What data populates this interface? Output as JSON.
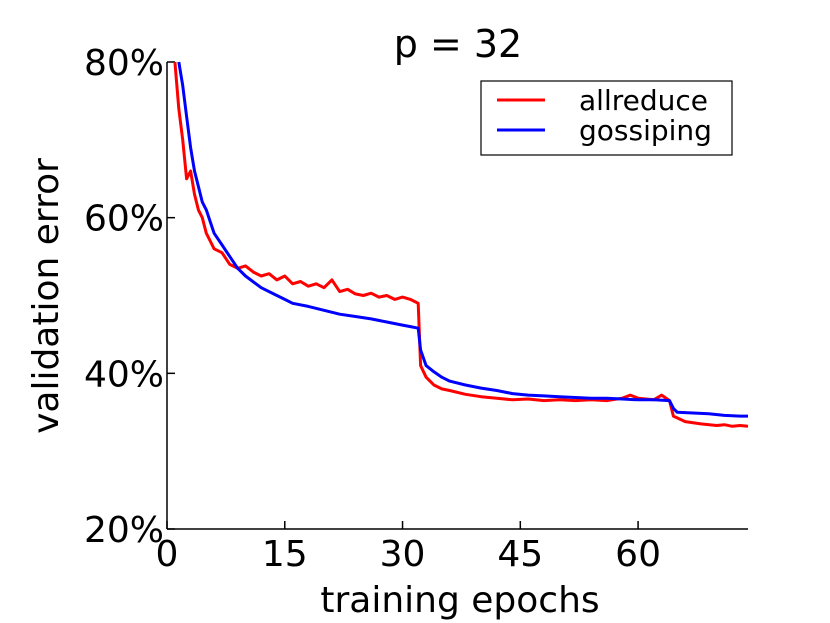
{
  "chart_data": {
    "type": "line",
    "title": "p = 32",
    "xlabel": "training epochs",
    "ylabel": "validation error",
    "xlim": [
      0,
      74
    ],
    "ylim": [
      20,
      80
    ],
    "xticks": [
      0,
      15,
      30,
      45,
      60
    ],
    "xtick_labels": [
      "0",
      "15",
      "30",
      "45",
      "60"
    ],
    "yticks": [
      20,
      40,
      60,
      80
    ],
    "ytick_labels": [
      "20%",
      "40%",
      "60%",
      "80%"
    ],
    "legend_position": "top-right",
    "series": [
      {
        "name": "allreduce",
        "color": "#ff0000",
        "points": [
          [
            1,
            80
          ],
          [
            1.5,
            74
          ],
          [
            2,
            70
          ],
          [
            2.5,
            65
          ],
          [
            3,
            66
          ],
          [
            3.5,
            63
          ],
          [
            4,
            61
          ],
          [
            4.5,
            60
          ],
          [
            5,
            58
          ],
          [
            5.5,
            57
          ],
          [
            6,
            56
          ],
          [
            7,
            55.5
          ],
          [
            8,
            54
          ],
          [
            9,
            53.5
          ],
          [
            10,
            53.8
          ],
          [
            11,
            53
          ],
          [
            12,
            52.5
          ],
          [
            13,
            52.8
          ],
          [
            14,
            52
          ],
          [
            15,
            52.5
          ],
          [
            16,
            51.5
          ],
          [
            17,
            51.8
          ],
          [
            18,
            51.2
          ],
          [
            19,
            51.5
          ],
          [
            20,
            51
          ],
          [
            21,
            52
          ],
          [
            22,
            50.5
          ],
          [
            23,
            50.8
          ],
          [
            24,
            50.2
          ],
          [
            25,
            50
          ],
          [
            26,
            50.3
          ],
          [
            27,
            49.8
          ],
          [
            28,
            50
          ],
          [
            29,
            49.5
          ],
          [
            30,
            49.8
          ],
          [
            31,
            49.5
          ],
          [
            32,
            49
          ],
          [
            32.3,
            41
          ],
          [
            33,
            39.5
          ],
          [
            34,
            38.5
          ],
          [
            35,
            38
          ],
          [
            36,
            37.8
          ],
          [
            38,
            37.3
          ],
          [
            40,
            37
          ],
          [
            42,
            36.8
          ],
          [
            44,
            36.6
          ],
          [
            46,
            36.7
          ],
          [
            48,
            36.5
          ],
          [
            50,
            36.6
          ],
          [
            52,
            36.5
          ],
          [
            54,
            36.6
          ],
          [
            56,
            36.5
          ],
          [
            58,
            36.8
          ],
          [
            59,
            37.2
          ],
          [
            60,
            36.8
          ],
          [
            62,
            36.6
          ],
          [
            63,
            37.2
          ],
          [
            64,
            36.5
          ],
          [
            64.5,
            34.5
          ],
          [
            66,
            33.8
          ],
          [
            68,
            33.5
          ],
          [
            70,
            33.3
          ],
          [
            71,
            33.4
          ],
          [
            72,
            33.2
          ],
          [
            73,
            33.3
          ],
          [
            74,
            33.2
          ]
        ]
      },
      {
        "name": "gossiping",
        "color": "#0000ff",
        "points": [
          [
            1.5,
            80
          ],
          [
            2,
            77
          ],
          [
            2.5,
            73
          ],
          [
            3,
            69
          ],
          [
            3.5,
            66
          ],
          [
            4,
            64
          ],
          [
            4.5,
            62
          ],
          [
            5,
            61
          ],
          [
            5.5,
            59.5
          ],
          [
            6,
            58
          ],
          [
            7,
            56.5
          ],
          [
            8,
            55
          ],
          [
            9,
            53.5
          ],
          [
            10,
            52.5
          ],
          [
            12,
            51
          ],
          [
            14,
            50
          ],
          [
            15,
            49.5
          ],
          [
            16,
            49
          ],
          [
            18,
            48.6
          ],
          [
            20,
            48.1
          ],
          [
            22,
            47.6
          ],
          [
            24,
            47.3
          ],
          [
            26,
            47
          ],
          [
            28,
            46.6
          ],
          [
            30,
            46.2
          ],
          [
            31,
            46
          ],
          [
            32,
            45.8
          ],
          [
            32.3,
            43
          ],
          [
            33,
            41
          ],
          [
            34,
            40.2
          ],
          [
            35,
            39.5
          ],
          [
            36,
            39
          ],
          [
            38,
            38.5
          ],
          [
            40,
            38.1
          ],
          [
            42,
            37.8
          ],
          [
            44,
            37.4
          ],
          [
            46,
            37.2
          ],
          [
            48,
            37.1
          ],
          [
            50,
            37
          ],
          [
            52,
            36.9
          ],
          [
            54,
            36.8
          ],
          [
            56,
            36.8
          ],
          [
            58,
            36.7
          ],
          [
            60,
            36.6
          ],
          [
            62,
            36.6
          ],
          [
            64,
            36.5
          ],
          [
            64.5,
            35.5
          ],
          [
            65,
            35
          ],
          [
            67,
            34.9
          ],
          [
            69,
            34.8
          ],
          [
            71,
            34.6
          ],
          [
            73,
            34.5
          ],
          [
            74,
            34.5
          ]
        ]
      }
    ]
  }
}
